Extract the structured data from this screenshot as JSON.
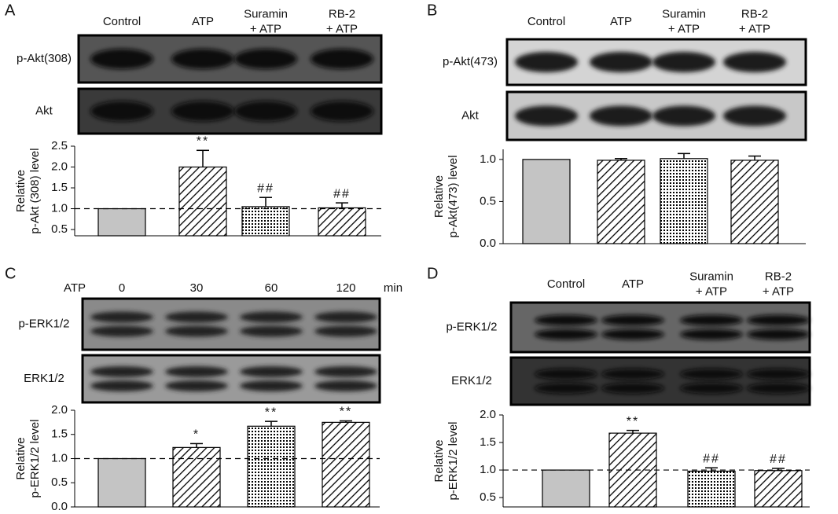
{
  "chart_data": [
    {
      "type": "bar",
      "panel": "A",
      "categories": [
        [
          "Control"
        ],
        [
          "ATP"
        ],
        [
          "Suramin",
          "+ ATP"
        ],
        [
          "RB-2",
          "+ ATP"
        ]
      ],
      "blots": [
        "p-Akt(308)",
        "Akt"
      ],
      "ylabel": [
        "Relative",
        "p-Akt (308) level"
      ],
      "values": [
        1.0,
        2.0,
        1.05,
        1.02
      ],
      "errors": [
        0,
        0.4,
        0.22,
        0.12
      ],
      "annotations": [
        null,
        "**",
        "##",
        "##"
      ],
      "fills": [
        "gray",
        "hatch",
        "dots",
        "hatch"
      ],
      "reference_line": 1.0,
      "ylim": [
        0.35,
        2.5
      ],
      "yticks": [
        0.5,
        {
          "value": 1,
          "label": "1.0"
        },
        1.5,
        {
          "value": 2,
          "label": "2.0"
        },
        2.5
      ]
    },
    {
      "type": "bar",
      "panel": "B",
      "categories": [
        [
          "Control"
        ],
        [
          "ATP"
        ],
        [
          "Suramin",
          "+ ATP"
        ],
        [
          "RB-2",
          "+ ATP"
        ]
      ],
      "blots": [
        "p-Akt(473)",
        "Akt"
      ],
      "ylabel": [
        "Relative",
        "p-Akt(473) level"
      ],
      "values": [
        1.0,
        0.99,
        1.01,
        0.99
      ],
      "errors": [
        0,
        0.02,
        0.06,
        0.05
      ],
      "annotations": [
        null,
        null,
        null,
        null
      ],
      "fills": [
        "gray",
        "hatch",
        "dots",
        "hatch"
      ],
      "ylim": [
        0,
        1.12
      ],
      "yticks": [
        {
          "value": 0,
          "label": "0.0"
        },
        0.5,
        {
          "value": 1,
          "label": "1.0"
        }
      ]
    },
    {
      "type": "bar",
      "panel": "C",
      "lane_prefix": "ATP",
      "lane_unit": "min",
      "categories": [
        [
          "0"
        ],
        [
          "30"
        ],
        [
          "60"
        ],
        [
          "120"
        ]
      ],
      "blots": [
        "p-ERK1/2",
        "ERK1/2"
      ],
      "ylabel": [
        "Relative",
        "p-ERK1/2 level"
      ],
      "values": [
        1.0,
        1.23,
        1.67,
        1.75
      ],
      "errors": [
        0,
        0.08,
        0.1,
        0.03
      ],
      "annotations": [
        null,
        "*",
        "**",
        "**"
      ],
      "fills": [
        "gray",
        "hatch",
        "dots",
        "hatch"
      ],
      "reference_line": 1.0,
      "ylim": [
        0,
        2.0
      ],
      "yticks": [
        {
          "value": 0,
          "label": "0.0"
        },
        0.5,
        {
          "value": 1,
          "label": "1.0"
        },
        1.5,
        {
          "value": 2,
          "label": "2.0"
        }
      ]
    },
    {
      "type": "bar",
      "panel": "D",
      "categories": [
        [
          "Control"
        ],
        [
          "ATP"
        ],
        [
          "Suramin",
          "+ ATP"
        ],
        [
          "RB-2",
          "+ ATP"
        ]
      ],
      "blots": [
        "p-ERK1/2",
        "ERK1/2"
      ],
      "ylabel": [
        "Relative",
        "p-ERK1/2 level"
      ],
      "values": [
        1.0,
        1.67,
        0.98,
        0.99
      ],
      "errors": [
        0,
        0.05,
        0.06,
        0.04
      ],
      "annotations": [
        null,
        "**",
        "##",
        "##"
      ],
      "fills": [
        "gray",
        "hatch",
        "dots",
        "hatch"
      ],
      "reference_line": 1.0,
      "ylim": [
        0.33,
        2.0
      ],
      "yticks": [
        0.5,
        {
          "value": 1,
          "label": "1.0"
        },
        1.5,
        {
          "value": 2,
          "label": "2.0"
        }
      ]
    }
  ]
}
